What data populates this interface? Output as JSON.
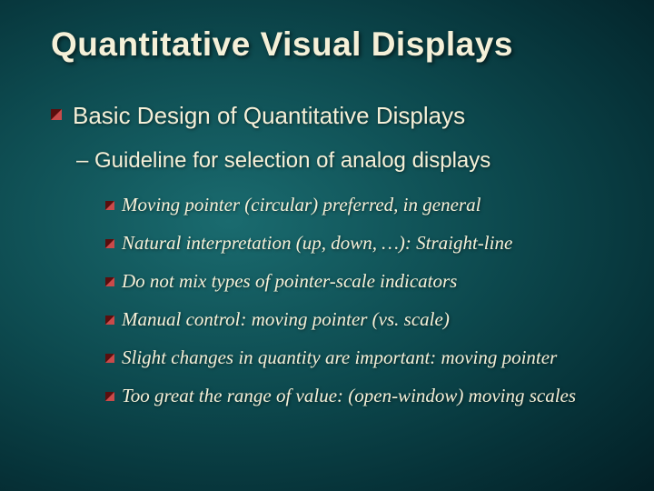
{
  "slide": {
    "title": "Quantitative Visual Displays",
    "level1": {
      "text": "Basic Design of Quantitative Displays"
    },
    "level2": {
      "text": "– Guideline for selection of analog displays"
    },
    "bullets": [
      {
        "text": "Moving pointer (circular) preferred, in general"
      },
      {
        "text": "Natural interpretation (up, down, …): Straight-line"
      },
      {
        "text": "Do not mix types of pointer-scale indicators"
      },
      {
        "text": "Manual control: moving pointer (vs. scale)"
      },
      {
        "text": "Slight changes in quantity are important: moving pointer"
      },
      {
        "text": "Too great the range of value: (open-window) moving scales"
      }
    ]
  },
  "style": {
    "background_gradient_inner": "#1a6b6f",
    "background_gradient_outer": "#031f25",
    "text_color": "#f5f0d8",
    "bullet_dark": "#5a0e0e",
    "bullet_light": "#c94a4a",
    "title_fontsize": 37,
    "level1_fontsize": 26,
    "level2_fontsize": 24,
    "level3_fontsize": 21,
    "title_font": "Arial bold",
    "level1_font": "Verdana",
    "level2_font": "Arial",
    "level3_font": "Georgia italic"
  }
}
